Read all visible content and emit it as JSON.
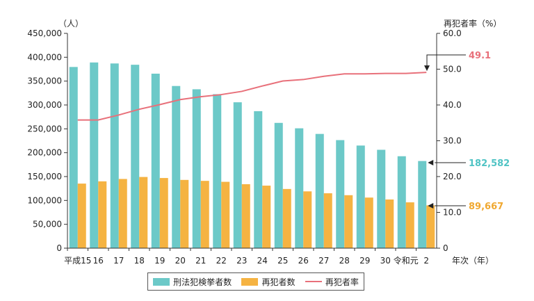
{
  "chart_data": {
    "type": "bar",
    "categories": [
      "平成15",
      "16",
      "17",
      "18",
      "19",
      "20",
      "21",
      "22",
      "23",
      "24",
      "25",
      "26",
      "27",
      "28",
      "29",
      "30",
      "令和元",
      "2"
    ],
    "series": [
      {
        "name": "刑法犯検挙者数",
        "type": "bar",
        "axis": "left",
        "color": "#6cc9c8",
        "values": [
          379602,
          389027,
          386955,
          384250,
          365577,
          339752,
          332888,
          322620,
          305631,
          287021,
          262486,
          251115,
          239355,
          226376,
          215003,
          206094,
          192607,
          182582
        ]
      },
      {
        "name": "再犯者数",
        "type": "bar",
        "axis": "left",
        "color": "#f5b342",
        "values": [
          135295,
          140000,
          145000,
          149164,
          147000,
          143000,
          141000,
          139000,
          134000,
          131000,
          124000,
          119000,
          115000,
          111000,
          106000,
          102000,
          96000,
          89667
        ]
      },
      {
        "name": "再犯者率",
        "type": "line",
        "axis": "right",
        "color": "#e8707a",
        "values": [
          35.8,
          35.8,
          37.2,
          38.8,
          40.1,
          41.5,
          42.3,
          42.9,
          43.8,
          45.3,
          46.7,
          47.1,
          48.0,
          48.7,
          48.7,
          48.8,
          48.8,
          49.1
        ]
      }
    ],
    "y_left": {
      "unit": "（人）",
      "ylim": [
        0,
        450000
      ],
      "ticks": [
        "0",
        "50,000",
        "100,000",
        "150,000",
        "200,000",
        "250,000",
        "300,000",
        "350,000",
        "400,000",
        "450,000"
      ]
    },
    "y_right": {
      "unit": "再犯者率（%）",
      "ylim": [
        0,
        60
      ],
      "ticks": [
        "0",
        "10.0",
        "20.0",
        "30.0",
        "40.0",
        "50.0",
        "60.0"
      ]
    },
    "x_unit": "年次（年）",
    "annotations": [
      {
        "text": "49.1",
        "series": 2,
        "color": "#e8707a"
      },
      {
        "text": "182,582",
        "series": 0,
        "color": "#4fc3c4"
      },
      {
        "text": "89,667",
        "series": 1,
        "color": "#f0a830"
      }
    ],
    "legend": {
      "position": "bottom-center"
    },
    "grid": false
  }
}
